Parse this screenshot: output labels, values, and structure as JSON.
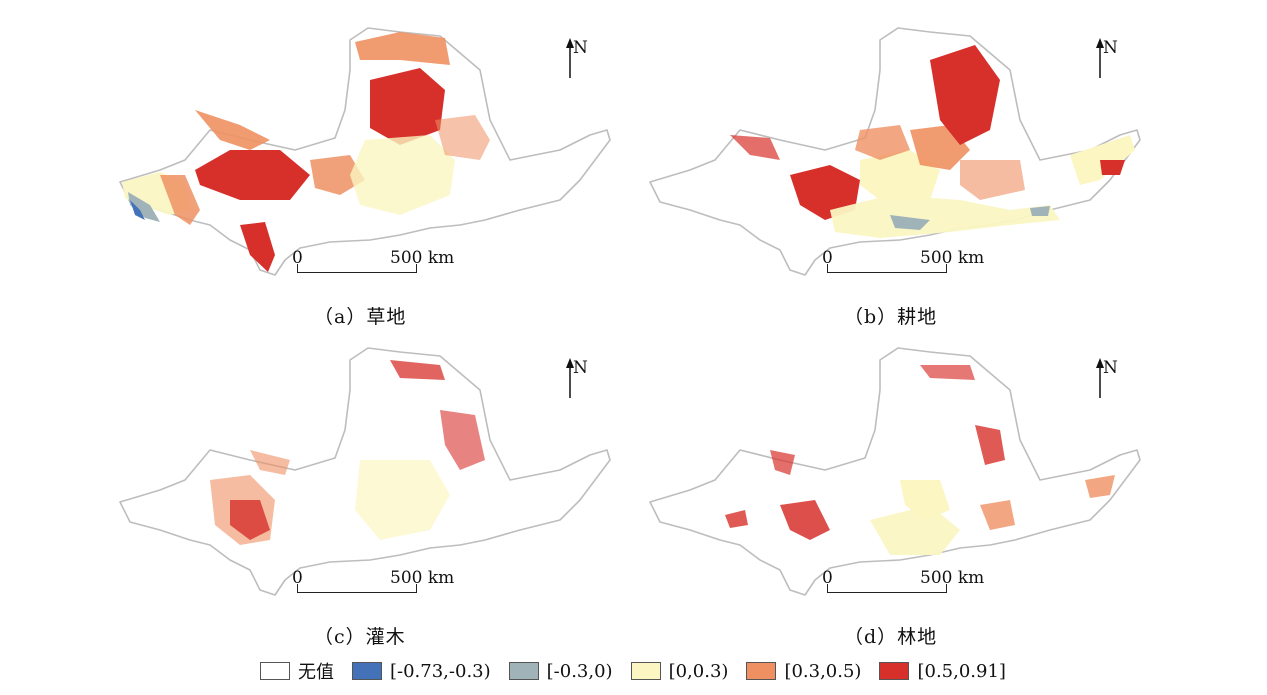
{
  "panels": [
    {
      "id": "a",
      "caption": "（a）草地",
      "north": "N",
      "scale_zero": "0",
      "scale_max": "500 km"
    },
    {
      "id": "b",
      "caption": "（b）耕地",
      "north": "N",
      "scale_zero": "0",
      "scale_max": "500 km"
    },
    {
      "id": "c",
      "caption": "（c）灌木",
      "north": "N",
      "scale_zero": "0",
      "scale_max": "500 km"
    },
    {
      "id": "d",
      "caption": "（d）林地",
      "north": "N",
      "scale_zero": "0",
      "scale_max": "500 km"
    }
  ],
  "legend": [
    {
      "label": "无值",
      "color": "#ffffff"
    },
    {
      "label": "[-0.73,-0.3)",
      "color": "#4472b8"
    },
    {
      "label": "[-0.3,0)",
      "color": "#9fb3b8"
    },
    {
      "label": "[0,0.3)",
      "color": "#fbf6c2"
    },
    {
      "label": "[0.3,0.5)",
      "color": "#ef9062"
    },
    {
      "label": "[0.5,0.91]",
      "color": "#d7302b"
    }
  ]
}
